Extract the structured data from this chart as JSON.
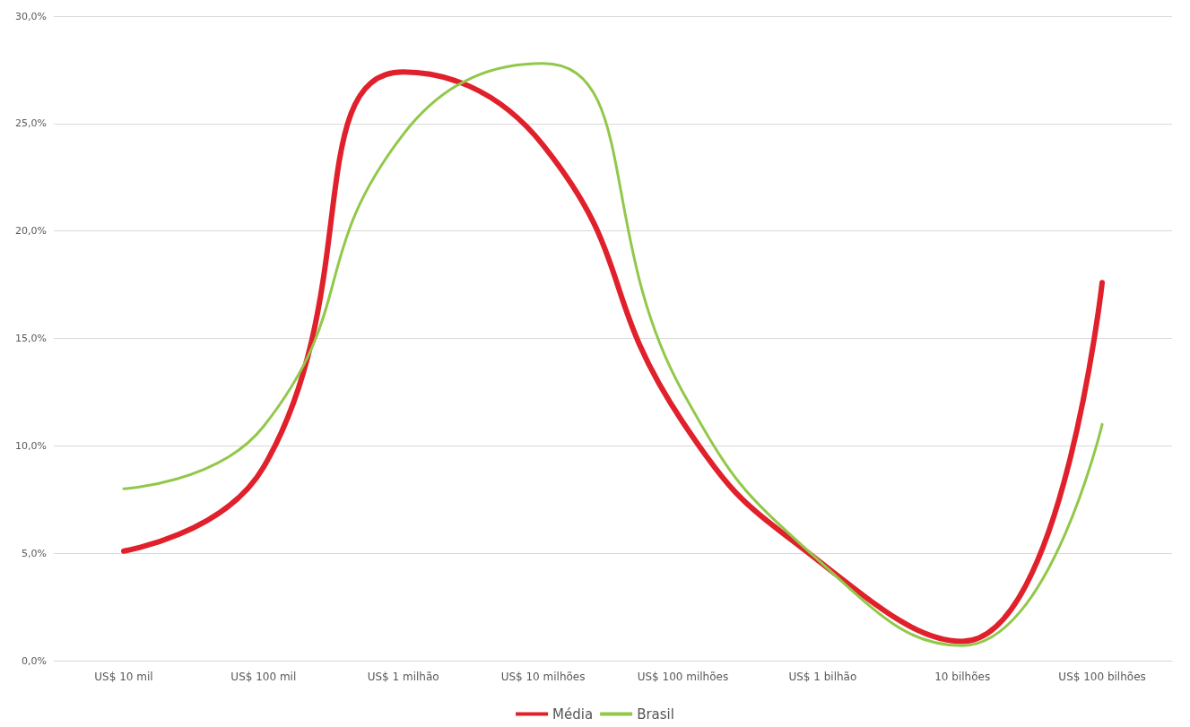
{
  "chart_data": {
    "type": "line",
    "categories": [
      "US$ 10 mil",
      "US$ 100 mil",
      "US$ 1 milhão",
      "US$ 10 milhões",
      "US$ 100 milhões",
      "US$ 1 bilhão",
      "10 bilhões",
      "US$ 100 bilhões"
    ],
    "series": [
      {
        "name": "Média",
        "color": "#e0202a",
        "values": [
          5.1,
          9.0,
          27.4,
          24.0,
          11.1,
          4.5,
          0.9,
          17.6
        ]
      },
      {
        "name": "Brasil",
        "color": "#92c84a",
        "values": [
          8.0,
          10.9,
          24.5,
          27.8,
          12.5,
          4.5,
          0.7,
          11.0
        ]
      }
    ],
    "ylim": [
      0,
      30
    ],
    "yticks": [
      {
        "value": 0,
        "label": "0,0%"
      },
      {
        "value": 5,
        "label": "5,0%"
      },
      {
        "value": 10,
        "label": "10,0%"
      },
      {
        "value": 15,
        "label": "15,0%"
      },
      {
        "value": 20,
        "label": "20,0%"
      },
      {
        "value": 25,
        "label": "25,0%"
      },
      {
        "value": 30,
        "label": "30,0%"
      }
    ],
    "grid": "y",
    "legend": "bottom",
    "marker": "none",
    "line_style": "solid"
  }
}
